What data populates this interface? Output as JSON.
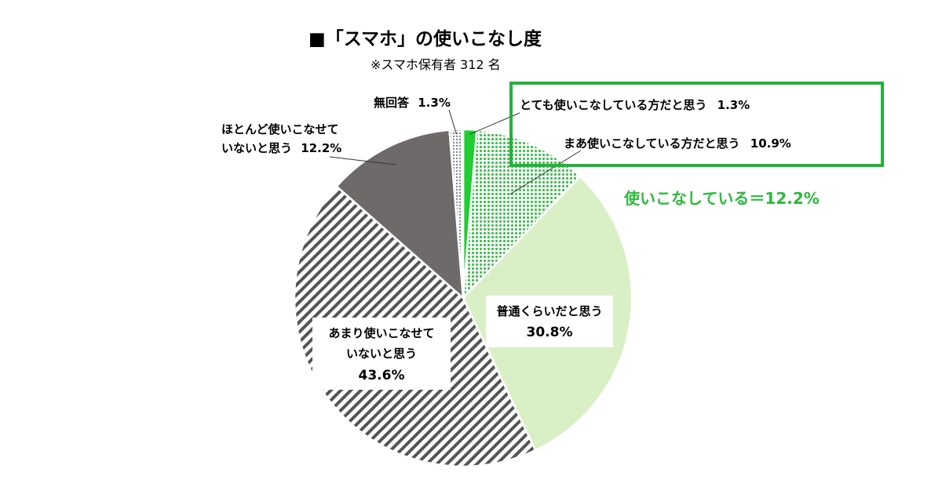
{
  "chart_data": {
    "type": "pie",
    "title": "■「スマホ」の使いこなし度",
    "subtitle": "※スマホ保有者 312 名",
    "start_angle_deg": 0,
    "direction": "clockwise",
    "slices": [
      {
        "label": "とても使いこなしている方だと思う",
        "value": 1.3,
        "value_label": "1.3%",
        "color": "#22cc33",
        "pattern": "solid"
      },
      {
        "label": "まあ使いこなしている方だと思う",
        "value": 10.9,
        "value_label": "10.9%",
        "color": "#3fbf4e",
        "pattern": "dots"
      },
      {
        "label": "普通くらいだと思う",
        "value": 30.8,
        "value_label": "30.8%",
        "color": "#d9f0c6",
        "pattern": "solid"
      },
      {
        "label_lines": [
          "あまり使いこなせて",
          "いないと思う"
        ],
        "label": "あまり使いこなせていないと思う",
        "value": 43.6,
        "value_label": "43.6%",
        "color": "#555555",
        "pattern": "diagonal-stripes"
      },
      {
        "label_lines": [
          "ほとんど使いこなせて",
          "いないと思う"
        ],
        "label": "ほとんど使いこなせていないと思う",
        "value": 12.2,
        "value_label": "12.2%",
        "color": "#6e6a6a",
        "pattern": "solid"
      },
      {
        "label": "無回答",
        "value": 1.3,
        "value_label": "1.3%",
        "color": "#9a9a9a",
        "pattern": "dots-light"
      }
    ],
    "highlight": {
      "text": "使いこなしている＝12.2%",
      "box_color": "#22b33a",
      "includes": [
        "とても使いこなしている方だと思う",
        "まあ使いこなしている方だと思う"
      ]
    }
  }
}
